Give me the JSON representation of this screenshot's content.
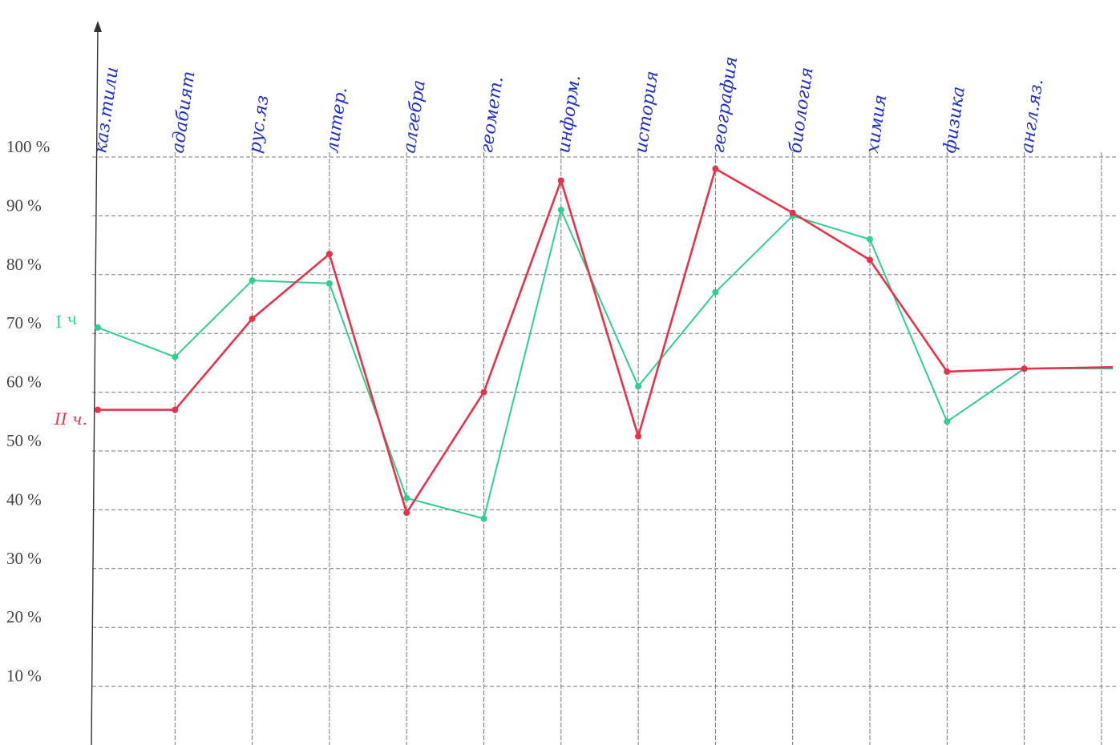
{
  "chart_data": {
    "type": "line",
    "title": "",
    "xlabel": "",
    "ylabel": "",
    "ylim": [
      0,
      100
    ],
    "y_ticks": [
      "10 %",
      "20 %",
      "30 %",
      "40 %",
      "50 %",
      "60 %",
      "70 %",
      "80 %",
      "90 %",
      "100 %"
    ],
    "categories": [
      "каз.тили",
      "адабият",
      "рус.яз",
      "литер.",
      "алгебра",
      "геомет.",
      "информ.",
      "история",
      "география",
      "биология",
      "химия",
      "физика",
      "англ.яз."
    ],
    "grid": true,
    "series": [
      {
        "name": "I ч",
        "color": "#2fcf8f",
        "values": [
          71,
          66,
          79,
          78.5,
          42,
          38.5,
          91,
          61,
          77,
          90,
          86,
          55,
          64
        ]
      },
      {
        "name": "II ч.",
        "color": "#e8324a",
        "values": [
          57,
          57,
          72.5,
          83.5,
          39.5,
          60,
          96,
          52.5,
          98,
          90.5,
          82.5,
          63.5,
          64
        ]
      }
    ]
  }
}
